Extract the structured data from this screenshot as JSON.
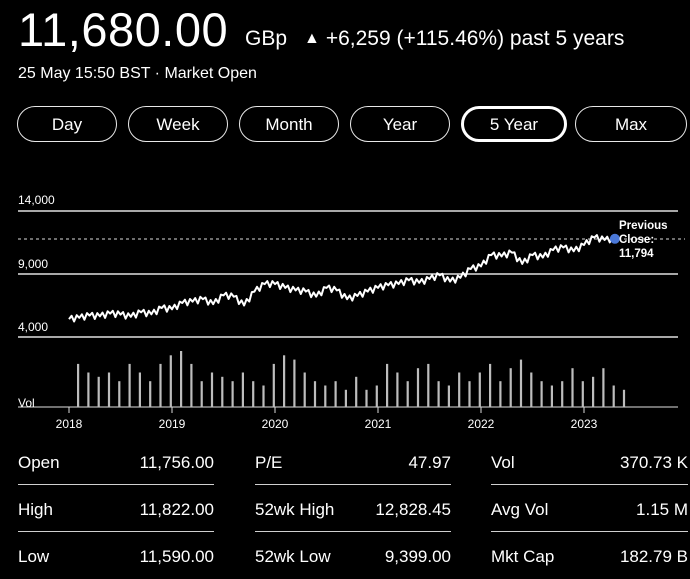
{
  "quote": {
    "price": "11,680.00",
    "currency": "GBp",
    "change": "+6,259 (+115.46%) past 5 years",
    "status": "25 May 15:50 BST · Market Open"
  },
  "ranges": [
    {
      "label": "Day",
      "active": false
    },
    {
      "label": "Week",
      "active": false
    },
    {
      "label": "Month",
      "active": false
    },
    {
      "label": "Year",
      "active": false
    },
    {
      "label": "5 Year",
      "active": true
    },
    {
      "label": "Max",
      "active": false
    }
  ],
  "chart_data": {
    "type": "line",
    "y_ticks": [
      "14,000",
      "9,000",
      "4,000"
    ],
    "ylim": [
      4000,
      14000
    ],
    "x_ticks": [
      "2018",
      "2019",
      "2020",
      "2021",
      "2022",
      "2023"
    ],
    "volume_label": "Vol",
    "previous_close_label": [
      "Previous",
      "Close:",
      "11,794"
    ],
    "previous_close": 11794,
    "x": [
      2018.0,
      2018.1,
      2018.2,
      2018.3,
      2018.4,
      2018.5,
      2018.6,
      2018.7,
      2018.8,
      2018.9,
      2019.0,
      2019.1,
      2019.2,
      2019.3,
      2019.4,
      2019.5,
      2019.6,
      2019.7,
      2019.8,
      2019.9,
      2020.0,
      2020.1,
      2020.2,
      2020.3,
      2020.4,
      2020.5,
      2020.6,
      2020.7,
      2020.8,
      2020.9,
      2021.0,
      2021.1,
      2021.2,
      2021.3,
      2021.4,
      2021.5,
      2021.6,
      2021.7,
      2021.8,
      2021.9,
      2022.0,
      2022.1,
      2022.2,
      2022.3,
      2022.4,
      2022.5,
      2022.6,
      2022.7,
      2022.8,
      2022.9,
      2023.0,
      2023.1,
      2023.2,
      2023.3
    ],
    "values": [
      5420,
      5520,
      5700,
      5640,
      5860,
      5780,
      5600,
      5960,
      5800,
      6300,
      6200,
      6700,
      6800,
      7000,
      6600,
      7300,
      7200,
      6500,
      7600,
      8200,
      8200,
      7900,
      7700,
      7600,
      7200,
      7900,
      7700,
      7000,
      7250,
      7600,
      7900,
      8100,
      8200,
      8500,
      8300,
      8600,
      8900,
      8400,
      8700,
      9400,
      9600,
      10500,
      10400,
      10700,
      9800,
      10500,
      10300,
      10900,
      11100,
      10800,
      11300,
      11900,
      11700,
      11800
    ],
    "volume": [
      5,
      4,
      3.5,
      4,
      3,
      5,
      4,
      3,
      5,
      6,
      6.5,
      5,
      3,
      4,
      3.5,
      3,
      4,
      3,
      2.5,
      5,
      6,
      5.5,
      4,
      3,
      2.5,
      3,
      2,
      3.5,
      2,
      2.5,
      5,
      4,
      3,
      4.5,
      5,
      3,
      2.5,
      4,
      3,
      4,
      5,
      3,
      4.5,
      5.5,
      4,
      3,
      2.5,
      3,
      4.5,
      3,
      3.5,
      4.5,
      2.5,
      2
    ]
  },
  "stats": [
    {
      "label": "Open",
      "value": "11,756.00"
    },
    {
      "label": "High",
      "value": "11,822.00"
    },
    {
      "label": "Low",
      "value": "11,590.00"
    },
    {
      "label": "P/E",
      "value": "47.97"
    },
    {
      "label": "52wk High",
      "value": "12,828.45"
    },
    {
      "label": "52wk Low",
      "value": "9,399.00"
    },
    {
      "label": "Vol",
      "value": "370.73 K"
    },
    {
      "label": "Avg Vol",
      "value": "1.15 M"
    },
    {
      "label": "Mkt Cap",
      "value": "182.79 B"
    }
  ]
}
